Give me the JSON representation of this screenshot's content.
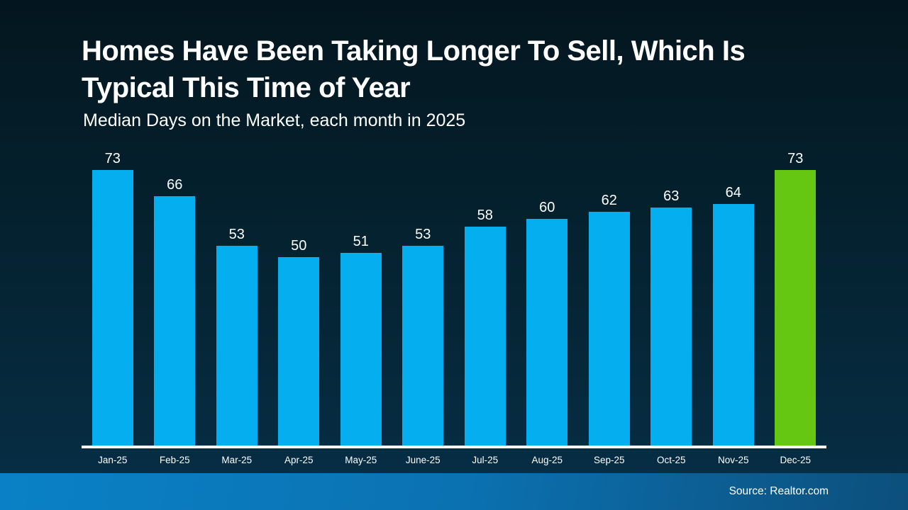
{
  "slide": {
    "title_line1": "Homes Have Been Taking Longer To Sell, Which Is",
    "title_line2": "Typical This Time of Year",
    "subtitle": "Median Days on the Market, each month in 2025",
    "source": "Source: Realtor.com"
  },
  "colors": {
    "bar": "#04aeef",
    "bar_highlight": "#66c712",
    "background_top": "#03161f",
    "background_bottom": "#07304a",
    "footer_left": "#0a81c6",
    "footer_right": "#0c4f7c",
    "axis_line": "#ffffff",
    "text": "#ffffff"
  },
  "chart_data": {
    "type": "bar",
    "title": "Homes Have Been Taking Longer To Sell, Which Is Typical This Time of Year",
    "subtitle": "Median Days on the Market, each month in 2025",
    "categories": [
      "Jan-25",
      "Feb-25",
      "Mar-25",
      "Apr-25",
      "May-25",
      "June-25",
      "Jul-25",
      "Aug-25",
      "Sep-25",
      "Oct-25",
      "Nov-25",
      "Dec-25"
    ],
    "values": [
      73,
      66,
      53,
      50,
      51,
      53,
      58,
      60,
      62,
      63,
      64,
      73
    ],
    "highlight_index": 11,
    "xlabel": "",
    "ylabel": "Median Days on the Market",
    "ylim": [
      0,
      73
    ],
    "grid": false,
    "legend": false,
    "data_labels": true,
    "source": "Realtor.com"
  }
}
